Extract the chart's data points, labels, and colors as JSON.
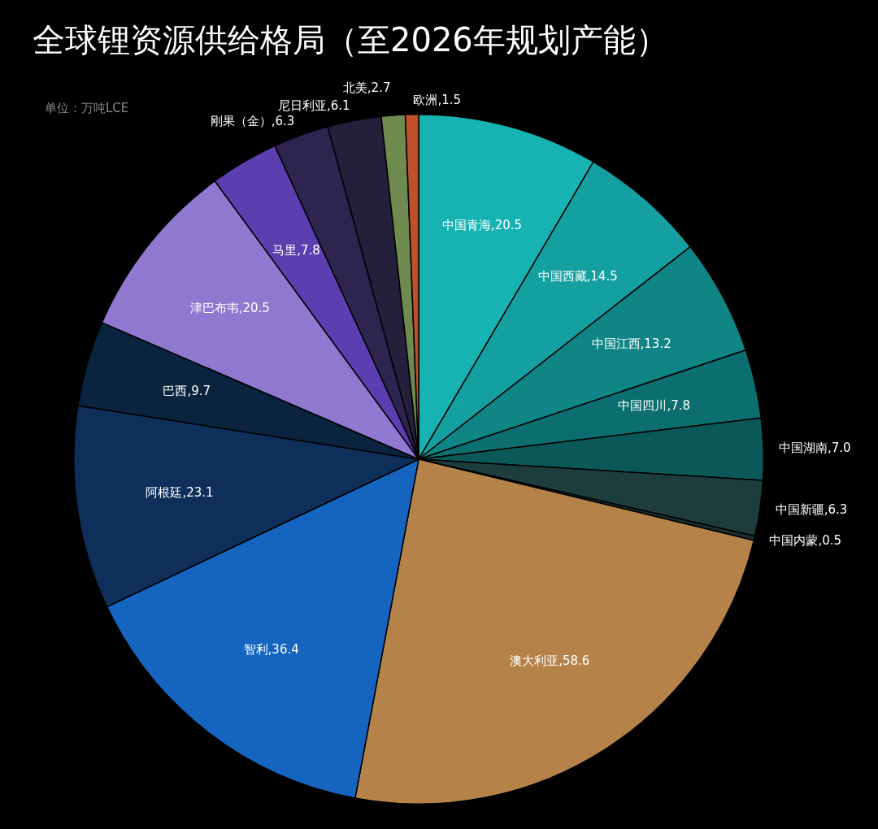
{
  "chart_data": {
    "type": "pie",
    "title": "全球锂资源供给格局（至2026年规划产能）",
    "subtitle": "单位：万吨LCE",
    "categories": [
      "中国青海",
      "中国西藏",
      "中国江西",
      "中国四川",
      "中国湖南",
      "中国新疆",
      "中国内蒙",
      "澳大利亚",
      "智利",
      "阿根廷",
      "巴西",
      "津巴布韦",
      "马里",
      "刚果（金）",
      "尼日利亚",
      "北美",
      "欧洲"
    ],
    "values": [
      20.5,
      14.5,
      13.2,
      7.8,
      7.0,
      6.3,
      0.5,
      58.6,
      36.4,
      23.1,
      9.7,
      20.5,
      7.8,
      6.3,
      6.1,
      2.7,
      1.5
    ],
    "value_labels": [
      "20.5",
      "14.5",
      "13.2",
      "7.8",
      "7.0",
      "6.3",
      "0.5",
      "58.6",
      "36.4",
      "23.1",
      "9.7",
      "20.5",
      "7.8",
      "6.3",
      "6.1",
      "2.7",
      "1.5"
    ],
    "colors": [
      "#17b3b3",
      "#14a0a0",
      "#0f8585",
      "#0c6e6e",
      "#0a5858",
      "#1d3d3d",
      "#1a2e2e",
      "#b5834a",
      "#1565c0",
      "#0d2f5a",
      "#0a2440",
      "#8f78cf",
      "#5b3fb0",
      "#2d2550",
      "#241f3a",
      "#6e8a4e",
      "#c0502a"
    ],
    "legend": false
  }
}
